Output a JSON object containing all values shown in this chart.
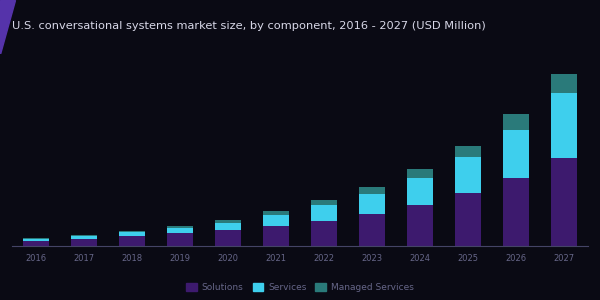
{
  "title": "U.S. conversational systems market size, by component, 2016 - 2027 (USD Million)",
  "years": [
    2016,
    2017,
    2018,
    2019,
    2020,
    2021,
    2022,
    2023,
    2024,
    2025,
    2026,
    2027
  ],
  "series": {
    "solutions": [
      55,
      75,
      100,
      128,
      162,
      205,
      260,
      330,
      420,
      545,
      700,
      900
    ],
    "services": [
      18,
      25,
      42,
      58,
      78,
      110,
      155,
      205,
      270,
      360,
      490,
      660
    ],
    "managed": [
      8,
      11,
      16,
      22,
      30,
      40,
      53,
      70,
      92,
      120,
      155,
      200
    ]
  },
  "colors": {
    "solutions": "#3d1a6e",
    "services": "#3ecfed",
    "managed": "#2a7a7a"
  },
  "background_color": "#0a0a14",
  "title_bg_color": "#2a1760",
  "title_color": "#d8d8e8",
  "title_fontsize": 8.2,
  "bar_width": 0.55,
  "legend_labels": [
    "Solutions",
    "Services",
    "Managed Services"
  ],
  "legend_colors": [
    "#3d1a6e",
    "#3ecfed",
    "#2a7a7a"
  ],
  "legend_fontsize": 6.5,
  "tick_color": "#666688",
  "tick_fontsize": 6.0,
  "ylim_factor": 1.08
}
